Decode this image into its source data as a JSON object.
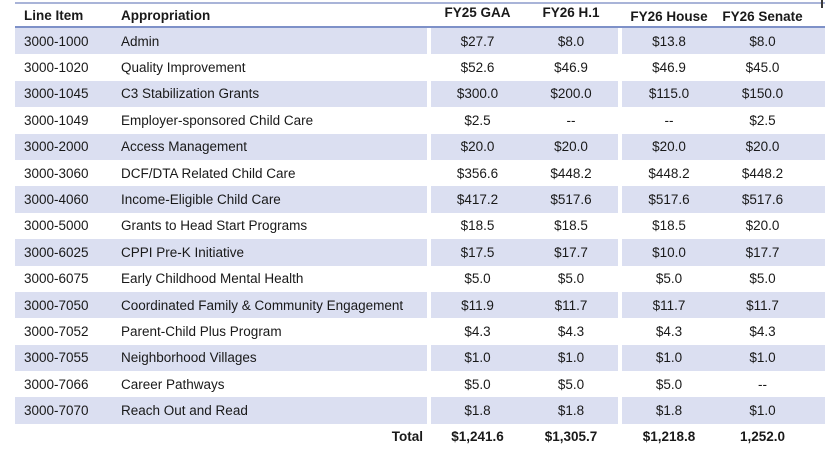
{
  "table": {
    "columns": [
      "Line Item",
      "Appropriation",
      "FY25 GAA",
      "FY26 H.1",
      "FY26 House",
      "FY26 Senate"
    ],
    "rows": [
      {
        "line_item": "3000-1000",
        "appropriation": "Admin",
        "values": [
          "$27.7",
          "$8.0",
          "$13.8",
          "$8.0"
        ]
      },
      {
        "line_item": "3000-1020",
        "appropriation": "Quality Improvement",
        "values": [
          "$52.6",
          "$46.9",
          "$46.9",
          "$45.0"
        ]
      },
      {
        "line_item": "3000-1045",
        "appropriation": "C3 Stabilization Grants",
        "values": [
          "$300.0",
          "$200.0",
          "$115.0",
          "$150.0"
        ]
      },
      {
        "line_item": "3000-1049",
        "appropriation": "Employer-sponsored Child Care",
        "values": [
          "$2.5",
          "--",
          "--",
          "$2.5"
        ]
      },
      {
        "line_item": "3000-2000",
        "appropriation": "Access Management",
        "values": [
          "$20.0",
          "$20.0",
          "$20.0",
          "$20.0"
        ]
      },
      {
        "line_item": "3000-3060",
        "appropriation": "DCF/DTA Related Child Care",
        "values": [
          "$356.6",
          "$448.2",
          "$448.2",
          "$448.2"
        ]
      },
      {
        "line_item": "3000-4060",
        "appropriation": "Income-Eligible Child Care",
        "values": [
          "$417.2",
          "$517.6",
          "$517.6",
          "$517.6"
        ]
      },
      {
        "line_item": "3000-5000",
        "appropriation": "Grants to Head Start Programs",
        "values": [
          "$18.5",
          "$18.5",
          "$18.5",
          "$20.0"
        ]
      },
      {
        "line_item": "3000-6025",
        "appropriation": "CPPI Pre-K Initiative",
        "values": [
          "$17.5",
          "$17.7",
          "$10.0",
          "$17.7"
        ]
      },
      {
        "line_item": "3000-6075",
        "appropriation": "Early Childhood Mental Health",
        "values": [
          "$5.0",
          "$5.0",
          "$5.0",
          "$5.0"
        ]
      },
      {
        "line_item": "3000-7050",
        "appropriation": "Coordinated Family & Community Engagement",
        "values": [
          "$11.9",
          "$11.7",
          "$11.7",
          "$11.7"
        ]
      },
      {
        "line_item": "3000-7052",
        "appropriation": "Parent-Child Plus Program",
        "values": [
          "$4.3",
          "$4.3",
          "$4.3",
          "$4.3"
        ]
      },
      {
        "line_item": "3000-7055",
        "appropriation": "Neighborhood Villages",
        "values": [
          "$1.0",
          "$1.0",
          "$1.0",
          "$1.0"
        ]
      },
      {
        "line_item": "3000-7066",
        "appropriation": "Career Pathways",
        "values": [
          "$5.0",
          "$5.0",
          "$5.0",
          "--"
        ]
      },
      {
        "line_item": "3000-7070",
        "appropriation": "Reach Out and Read",
        "values": [
          "$1.8",
          "$1.8",
          "$1.8",
          "$1.0"
        ]
      }
    ],
    "total": {
      "label": "Total",
      "values": [
        "$1,241.6",
        "$1,305.7",
        "$1,218.8",
        "1,252.0"
      ]
    }
  },
  "colors": {
    "band": "#DBDFF1",
    "header_top_line": "#A9B4D8",
    "header_bottom_line": "#7E91C8",
    "text": "#191919"
  },
  "chart_data": {
    "type": "table",
    "title": "",
    "columns": [
      "Line Item",
      "Appropriation",
      "FY25 GAA",
      "FY26 H.1",
      "FY26 House",
      "FY26 Senate"
    ],
    "units": "USD millions, shown with $ prefix",
    "null_marker": "--",
    "rows": [
      [
        "3000-1000",
        "Admin",
        27.7,
        8.0,
        13.8,
        8.0
      ],
      [
        "3000-1020",
        "Quality Improvement",
        52.6,
        46.9,
        46.9,
        45.0
      ],
      [
        "3000-1045",
        "C3 Stabilization Grants",
        300.0,
        200.0,
        115.0,
        150.0
      ],
      [
        "3000-1049",
        "Employer-sponsored Child Care",
        2.5,
        null,
        null,
        2.5
      ],
      [
        "3000-2000",
        "Access Management",
        20.0,
        20.0,
        20.0,
        20.0
      ],
      [
        "3000-3060",
        "DCF/DTA Related Child Care",
        356.6,
        448.2,
        448.2,
        448.2
      ],
      [
        "3000-4060",
        "Income-Eligible Child Care",
        417.2,
        517.6,
        517.6,
        517.6
      ],
      [
        "3000-5000",
        "Grants to Head Start Programs",
        18.5,
        18.5,
        18.5,
        20.0
      ],
      [
        "3000-6025",
        "CPPI Pre-K Initiative",
        17.5,
        17.7,
        10.0,
        17.7
      ],
      [
        "3000-6075",
        "Early Childhood Mental Health",
        5.0,
        5.0,
        5.0,
        5.0
      ],
      [
        "3000-7050",
        "Coordinated Family & Community Engagement",
        11.9,
        11.7,
        11.7,
        11.7
      ],
      [
        "3000-7052",
        "Parent-Child Plus Program",
        4.3,
        4.3,
        4.3,
        4.3
      ],
      [
        "3000-7055",
        "Neighborhood Villages",
        1.0,
        1.0,
        1.0,
        1.0
      ],
      [
        "3000-7066",
        "Career Pathways",
        5.0,
        5.0,
        5.0,
        null
      ],
      [
        "3000-7070",
        "Reach Out and Read",
        1.8,
        1.8,
        1.8,
        1.0
      ]
    ],
    "total_row": [
      "",
      "Total",
      1241.6,
      1305.7,
      1218.8,
      1252.0
    ]
  }
}
